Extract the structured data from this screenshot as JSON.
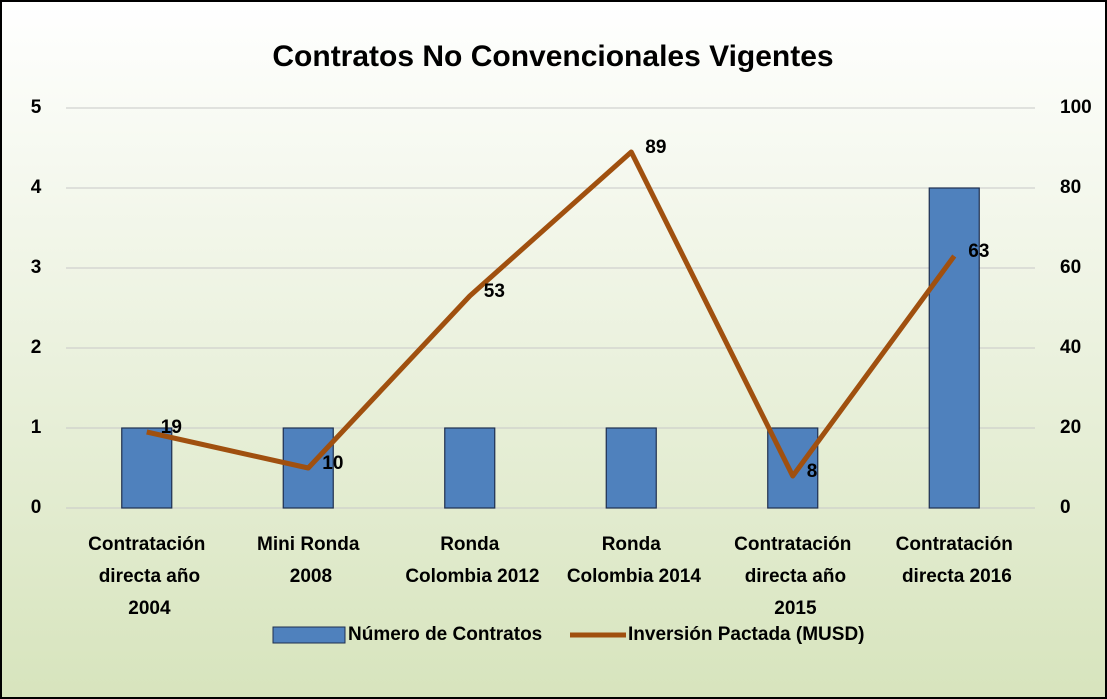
{
  "chart_data": {
    "type": "bar+line",
    "title": "Contratos No Convencionales Vigentes",
    "categories": [
      "Contratación directa año 2004",
      "Mini Ronda 2008",
      "Ronda Colombia 2012",
      "Ronda Colombia 2014",
      "Contratación directa año 2015",
      "Contratación directa 2016"
    ],
    "series": [
      {
        "name": "Número de Contratos",
        "type": "bar",
        "color": "#4f81bd",
        "values": [
          1,
          1,
          1,
          1,
          1,
          4
        ]
      },
      {
        "name": "Inversión Pactada (MUSD)",
        "type": "line",
        "axis": "y2",
        "color": "#a0500f",
        "values": [
          19,
          10,
          53,
          89,
          8,
          63
        ]
      }
    ],
    "ylim": [
      0,
      5
    ],
    "yticks": [
      0,
      1,
      2,
      3,
      4,
      5
    ],
    "y2lim": [
      0,
      100
    ],
    "y2ticks": [
      0,
      20,
      40,
      60,
      80,
      100
    ],
    "grid": true,
    "legend": "bottom"
  }
}
